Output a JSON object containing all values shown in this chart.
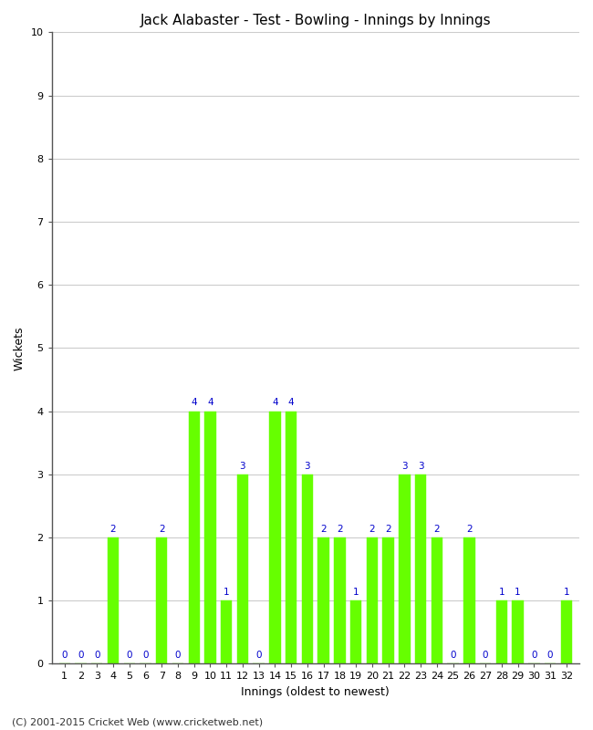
{
  "title": "Jack Alabaster - Test - Bowling - Innings by Innings",
  "xlabel": "Innings (oldest to newest)",
  "ylabel": "Wickets",
  "innings": [
    1,
    2,
    3,
    4,
    5,
    6,
    7,
    8,
    9,
    10,
    11,
    12,
    13,
    14,
    15,
    16,
    17,
    18,
    19,
    20,
    21,
    22,
    23,
    24,
    25,
    26,
    27,
    28,
    29,
    30,
    31,
    32
  ],
  "wickets": [
    0,
    0,
    0,
    2,
    0,
    0,
    2,
    0,
    4,
    4,
    1,
    3,
    0,
    4,
    4,
    3,
    2,
    2,
    1,
    2,
    2,
    3,
    3,
    2,
    0,
    2,
    0,
    1,
    1,
    0,
    0,
    1
  ],
  "bar_color": "#66ff00",
  "bar_edge_color": "#66ff00",
  "label_color": "#0000cc",
  "background_color": "#ffffff",
  "ylim": [
    0,
    10
  ],
  "yticks": [
    0,
    1,
    2,
    3,
    4,
    5,
    6,
    7,
    8,
    9,
    10
  ],
  "grid_color": "#cccccc",
  "title_fontsize": 11,
  "axis_label_fontsize": 9,
  "tick_fontsize": 8,
  "label_fontsize": 7.5,
  "footer": "(C) 2001-2015 Cricket Web (www.cricketweb.net)",
  "footer_fontsize": 8
}
